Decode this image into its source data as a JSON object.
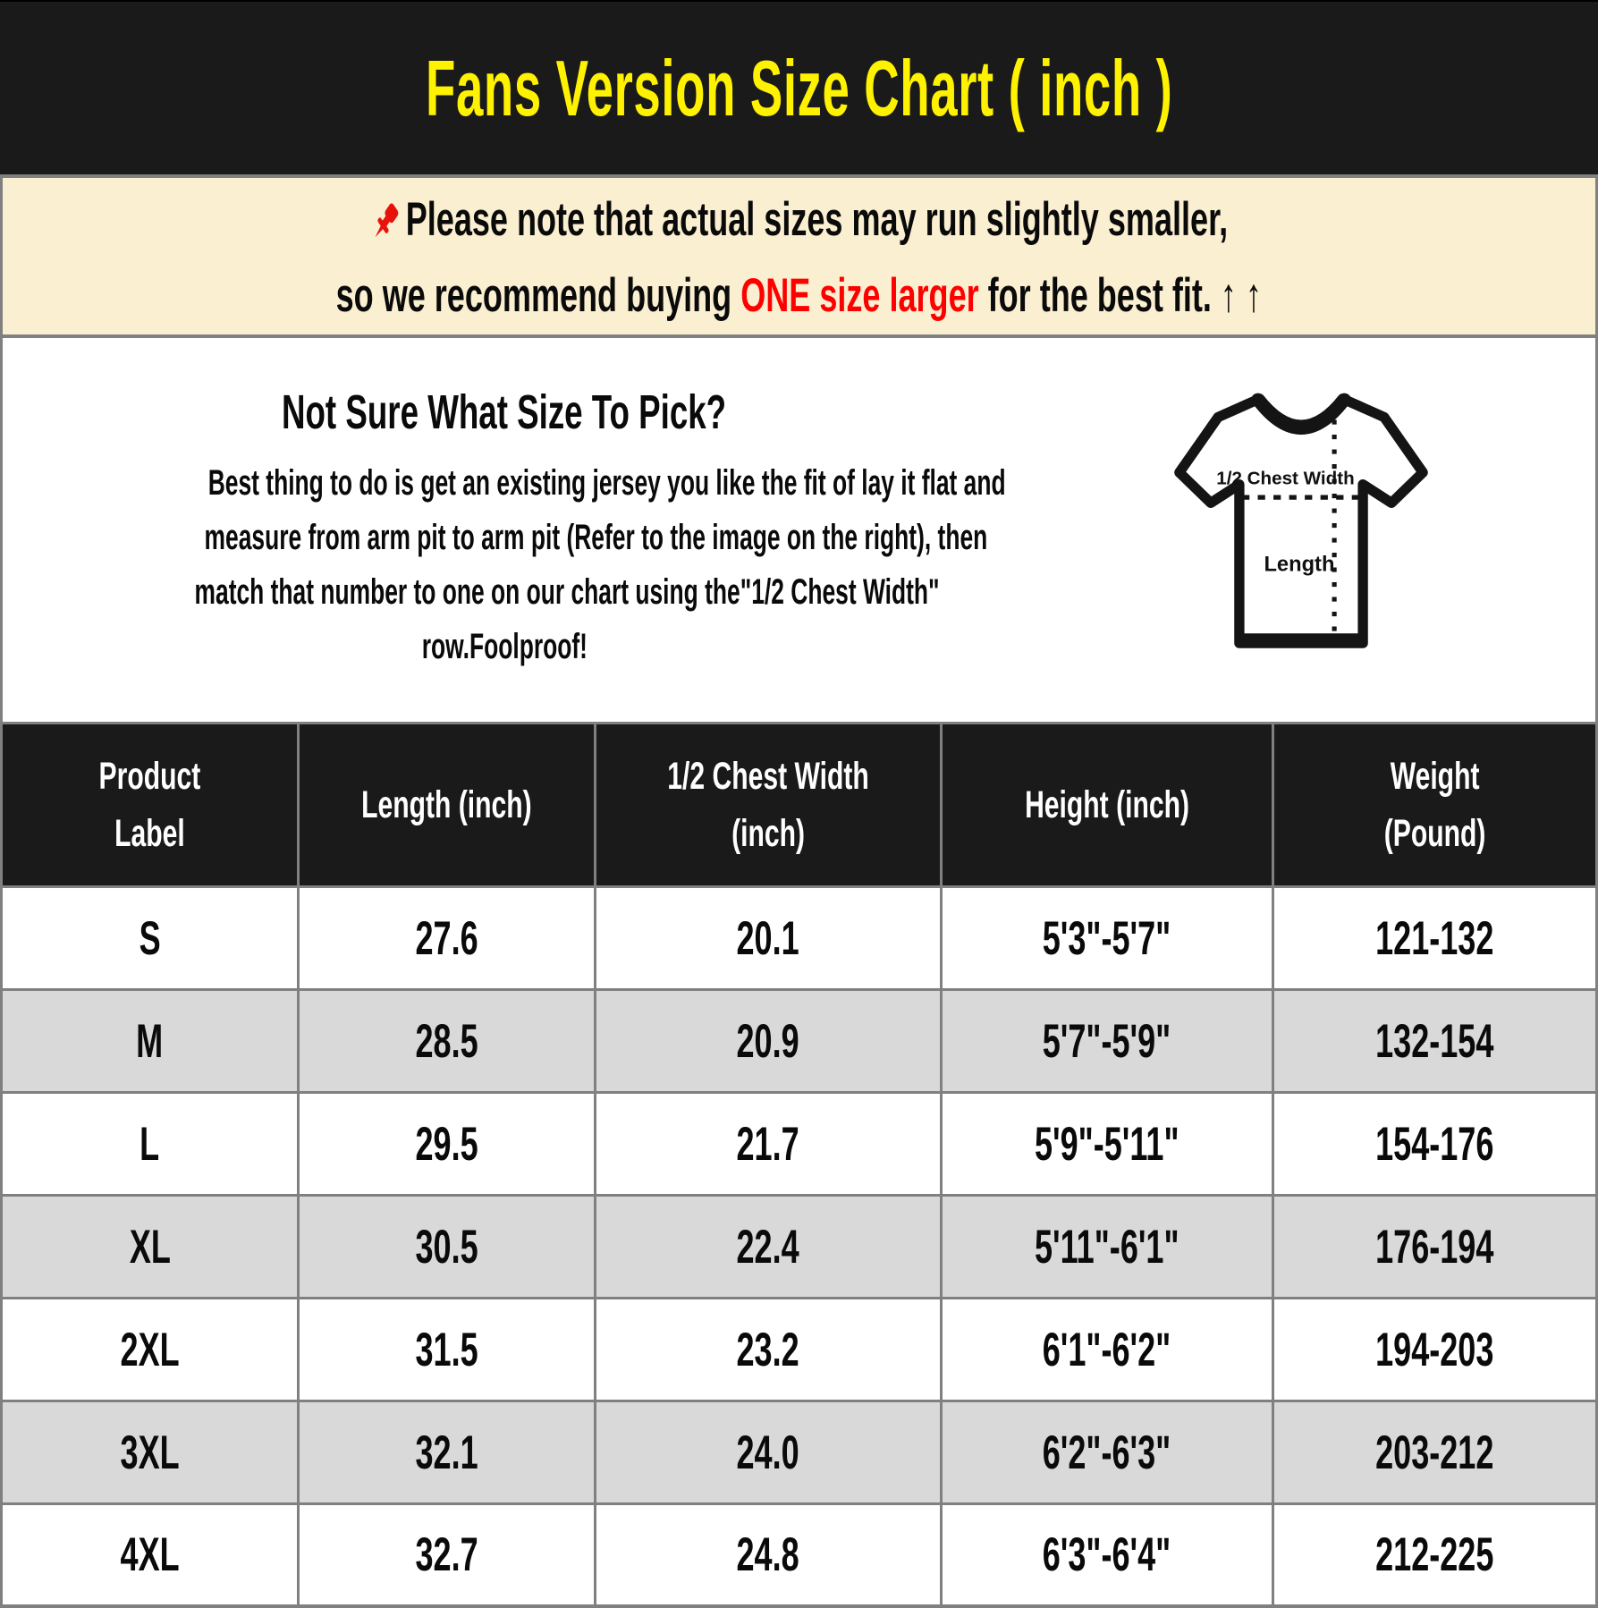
{
  "title": "Fans Version Size Chart ( inch )",
  "colors": {
    "header_bg": "#1A1A1A",
    "title_text": "#FFF200",
    "note_bg": "#FAEFD0",
    "highlight_red": "#FF0000",
    "row_alt": "#D9D9D9",
    "border": "#808080"
  },
  "note": {
    "pushpin_icon": "red-pushpin-icon",
    "line1": "Please note that actual sizes may run slightly smaller,",
    "line2_prefix": "so we recommend buying ",
    "line2_highlight": "ONE size larger",
    "line2_suffix": " for the best fit. ↑ ↑"
  },
  "instructions": {
    "heading": "Not Sure What Size To Pick?",
    "body_lines": [
      "Best thing to do is get an existing jersey you like the fit of lay it flat and",
      "measure from arm pit to arm pit (Refer to the image on the right), then",
      "match that number to one on our chart using the\"1/2 Chest Width\"",
      "row.Foolproof!"
    ]
  },
  "diagram": {
    "chest_label": "1/2 Chest Width",
    "length_label": "Length"
  },
  "table": {
    "columns": [
      {
        "key": "product-label",
        "lines": [
          "Product",
          "Label"
        ]
      },
      {
        "key": "length",
        "lines": [
          "Length (inch)"
        ]
      },
      {
        "key": "chest-width",
        "lines": [
          "1/2 Chest Width",
          "(inch)"
        ]
      },
      {
        "key": "height",
        "lines": [
          "Height (inch)"
        ]
      },
      {
        "key": "weight",
        "lines": [
          "Weight",
          "(Pound)"
        ]
      }
    ],
    "rows": [
      {
        "label": "S",
        "length": "27.6",
        "chest": "20.1",
        "height": "5'3\"-5'7\"",
        "weight": "121-132"
      },
      {
        "label": "M",
        "length": "28.5",
        "chest": "20.9",
        "height": "5'7\"-5'9\"",
        "weight": "132-154"
      },
      {
        "label": "L",
        "length": "29.5",
        "chest": "21.7",
        "height": "5'9\"-5'11\"",
        "weight": "154-176"
      },
      {
        "label": "XL",
        "length": "30.5",
        "chest": "22.4",
        "height": "5'11\"-6'1\"",
        "weight": "176-194"
      },
      {
        "label": "2XL",
        "length": "31.5",
        "chest": "23.2",
        "height": "6'1\"-6'2\"",
        "weight": "194-203"
      },
      {
        "label": "3XL",
        "length": "32.1",
        "chest": "24.0",
        "height": "6'2\"-6'3\"",
        "weight": "203-212"
      },
      {
        "label": "4XL",
        "length": "32.7",
        "chest": "24.8",
        "height": "6'3\"-6'4\"",
        "weight": "212-225"
      }
    ]
  },
  "chart_data": {
    "type": "table",
    "title": "Fans Version Size Chart ( inch )",
    "columns": [
      "Product Label",
      "Length (inch)",
      "1/2 Chest Width (inch)",
      "Height (inch)",
      "Weight (Pound)"
    ],
    "rows": [
      [
        "S",
        "27.6",
        "20.1",
        "5'3\"-5'7\"",
        "121-132"
      ],
      [
        "M",
        "28.5",
        "20.9",
        "5'7\"-5'9\"",
        "132-154"
      ],
      [
        "L",
        "29.5",
        "21.7",
        "5'9\"-5'11\"",
        "154-176"
      ],
      [
        "XL",
        "30.5",
        "22.4",
        "5'11\"-6'1\"",
        "176-194"
      ],
      [
        "2XL",
        "31.5",
        "23.2",
        "6'1\"-6'2\"",
        "194-203"
      ],
      [
        "3XL",
        "32.1",
        "24.0",
        "6'2\"-6'3\"",
        "203-212"
      ],
      [
        "4XL",
        "32.7",
        "24.8",
        "6'3\"-6'4\"",
        "212-225"
      ]
    ]
  }
}
